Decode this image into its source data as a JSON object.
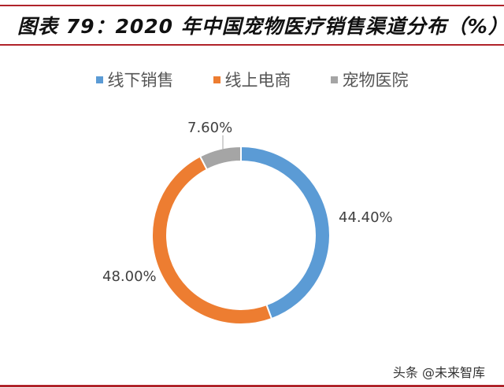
{
  "title": "图表 79：2020 年中国宠物医疗销售渠道分布（%）",
  "watermark": "头条 @未来智库",
  "chart_data": {
    "type": "pie",
    "variant": "donut",
    "title": "图表 79：2020 年中国宠物医疗销售渠道分布（%）",
    "legend_position": "top",
    "categories": [
      "线下销售",
      "线上电商",
      "宠物医院"
    ],
    "values": [
      44.4,
      48.0,
      7.6
    ],
    "data_labels": [
      "44.40%",
      "48.00%",
      "7.60%"
    ],
    "colors": [
      "#5b9bd5",
      "#ed7d31",
      "#a5a5a5"
    ]
  }
}
